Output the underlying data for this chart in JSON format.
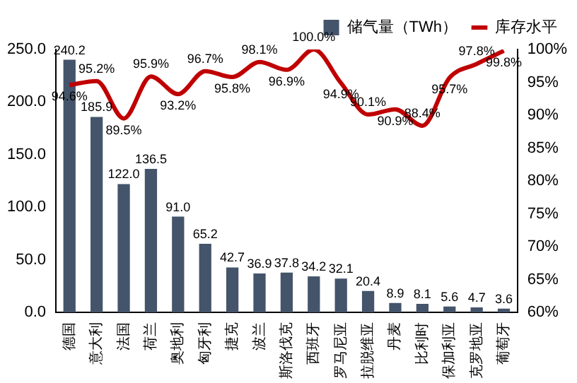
{
  "chart_data": {
    "type": "bar",
    "categories": [
      "德国",
      "意大利",
      "法国",
      "荷兰",
      "奥地利",
      "匈牙利",
      "捷克",
      "波兰",
      "斯洛伐克",
      "西班牙",
      "罗马尼亚",
      "拉脱维亚",
      "丹麦",
      "比利时",
      "保加利亚",
      "克罗地亚",
      "葡萄牙"
    ],
    "series": [
      {
        "name": "储气量（TWh）",
        "color": "#44546a",
        "values": [
          240.2,
          185.9,
          122.0,
          136.5,
          91.0,
          65.2,
          42.7,
          36.9,
          37.8,
          34.2,
          32.1,
          20.4,
          8.9,
          8.1,
          5.6,
          4.7,
          3.6
        ],
        "value_labels": [
          "240.2",
          "185.9",
          "122.0",
          "136.5",
          "91.0",
          "65.2",
          "42.7",
          "36.9",
          "37.8",
          "34.2",
          "32.1",
          "20.4",
          "8.9",
          "8.1",
          "5.6",
          "4.7",
          "3.6"
        ]
      },
      {
        "name": "库存水平",
        "type": "line",
        "axis": "y2",
        "color": "#c00000",
        "values": [
          94.6,
          95.2,
          89.5,
          95.9,
          93.2,
          96.7,
          95.8,
          98.1,
          96.9,
          100.0,
          94.9,
          90.1,
          90.9,
          88.4,
          95.7,
          97.8,
          99.8
        ],
        "value_labels": [
          "94.6%",
          "95.2%",
          "89.5%",
          "95.9%",
          "93.2%",
          "96.7%",
          "95.8%",
          "98.1%",
          "96.9%",
          "100.0%",
          "94.9%",
          "90.1%",
          "90.9%",
          "88.4%",
          "95.7%",
          "97.8%",
          "99.8%"
        ]
      }
    ],
    "ylim": [
      0,
      250
    ],
    "yticks": [
      {
        "value": 0,
        "label": "0.0"
      },
      {
        "value": 50,
        "label": "50.0"
      },
      {
        "value": 100,
        "label": "100.0"
      },
      {
        "value": 150,
        "label": "150.0"
      },
      {
        "value": 200,
        "label": "200.0"
      },
      {
        "value": 250,
        "label": "250.0"
      }
    ],
    "y2lim": [
      60,
      100
    ],
    "y2ticks": [
      {
        "value": 60,
        "label": "60%"
      },
      {
        "value": 65,
        "label": "65%"
      },
      {
        "value": 70,
        "label": "70%"
      },
      {
        "value": 75,
        "label": "75%"
      },
      {
        "value": 80,
        "label": "80%"
      },
      {
        "value": 85,
        "label": "85%"
      },
      {
        "value": 90,
        "label": "90%"
      },
      {
        "value": 95,
        "label": "95%"
      },
      {
        "value": 100,
        "label": "100%"
      }
    ],
    "grid": false,
    "legend": "top",
    "marker": "none",
    "line_style": "solid"
  }
}
